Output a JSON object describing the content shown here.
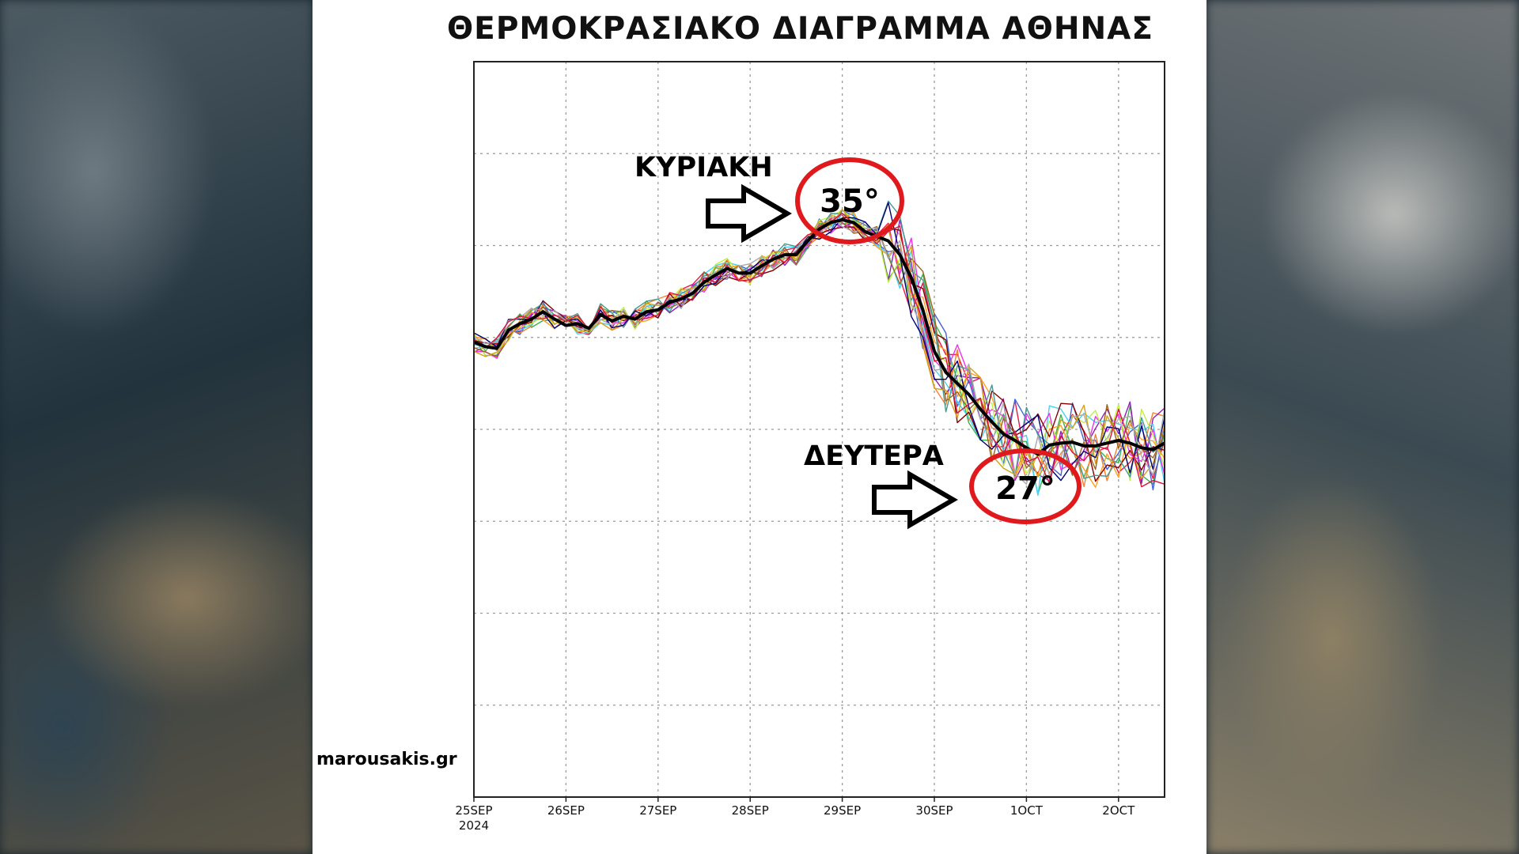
{
  "page": {
    "title": "ΘΕΡΜΟΚΡΑΣΙΑΚΟ ΔΙΑΓΡΑΜΜΑ ΑΘΗΝΑΣ",
    "watermark": "marousakis.gr"
  },
  "colors": {
    "mean_line": "#000000",
    "circle": "#e0191c",
    "grid": "#9a9a9a",
    "members": [
      "#e6194b",
      "#3cb44b",
      "#4363d8",
      "#f58231",
      "#911eb4",
      "#42d4f4",
      "#f032e6",
      "#bfef45",
      "#ff9f1c",
      "#800000",
      "#469990",
      "#9a6324",
      "#d4a017",
      "#000075",
      "#a9a9a9",
      "#dc143c"
    ]
  },
  "chart_data": {
    "type": "line",
    "title": "ΘΕΡΜΟΚΡΑΣΙΑΚΟ ΔΙΑΓΡΑΜΜΑ ΑΘΗΝΑΣ",
    "x_tick_labels": [
      {
        "label": "25SEP",
        "sub": "2024",
        "day": 0
      },
      {
        "label": "26SEP",
        "sub": "",
        "day": 1
      },
      {
        "label": "27SEP",
        "sub": "",
        "day": 2
      },
      {
        "label": "28SEP",
        "sub": "",
        "day": 3
      },
      {
        "label": "29SEP",
        "sub": "",
        "day": 4
      },
      {
        "label": "30SEP",
        "sub": "",
        "day": 5
      },
      {
        "label": "1OCT",
        "sub": "",
        "day": 6
      },
      {
        "label": "2OCT",
        "sub": "",
        "day": 7
      }
    ],
    "xlim": [
      0,
      7.5
    ],
    "ylim": [
      0,
      8
    ],
    "y_gridlines": [
      1,
      2,
      3,
      4,
      5,
      6,
      7
    ],
    "grid": true,
    "mean_series": {
      "x": [
        0,
        0.125,
        0.25,
        0.375,
        0.5,
        0.625,
        0.75,
        0.875,
        1.0,
        1.125,
        1.25,
        1.375,
        1.5,
        1.625,
        1.75,
        1.875,
        2.0,
        2.125,
        2.25,
        2.375,
        2.5,
        2.625,
        2.75,
        2.875,
        3.0,
        3.125,
        3.25,
        3.375,
        3.5,
        3.625,
        3.75,
        3.875,
        4.0,
        4.125,
        4.25,
        4.375,
        4.5,
        4.625,
        4.75,
        4.875,
        5.0,
        5.125,
        5.25,
        5.375,
        5.5,
        5.625,
        5.75,
        5.875,
        6.0,
        6.125,
        6.25,
        6.375,
        6.5,
        6.625,
        6.75,
        6.875,
        7.0,
        7.125,
        7.25,
        7.375,
        7.5
      ],
      "y": [
        4.95,
        4.9,
        4.88,
        5.08,
        5.15,
        5.2,
        5.28,
        5.2,
        5.13,
        5.15,
        5.1,
        5.25,
        5.18,
        5.23,
        5.2,
        5.28,
        5.3,
        5.38,
        5.42,
        5.48,
        5.6,
        5.68,
        5.75,
        5.7,
        5.7,
        5.78,
        5.85,
        5.9,
        5.9,
        6.05,
        6.18,
        6.25,
        6.28,
        6.25,
        6.15,
        6.1,
        6.05,
        5.9,
        5.65,
        5.3,
        4.85,
        4.62,
        4.5,
        4.38,
        4.22,
        4.08,
        3.95,
        3.88,
        3.8,
        3.73,
        3.83,
        3.85,
        3.86,
        3.82,
        3.82,
        3.85,
        3.88,
        3.85,
        3.8,
        3.78,
        3.85
      ]
    },
    "y_units": "°C",
    "annotations": [
      {
        "label": "ΚΥΡΙΑΚΗ",
        "value": "35°"
      },
      {
        "label": "ΔΕΥΤΕΡΑ",
        "value": "27°"
      }
    ]
  }
}
